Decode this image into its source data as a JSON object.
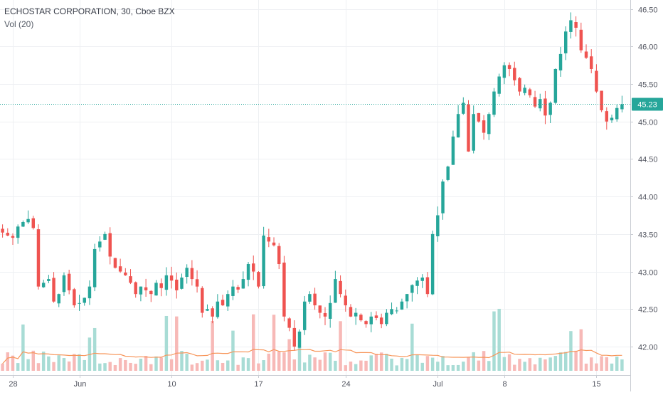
{
  "legend": {
    "title": "ECHOSTAR CORPORATION, 30, Cboe BZX",
    "volume_label": "Vol (20)"
  },
  "colors": {
    "up": "#26a69a",
    "down": "#ef5350",
    "vol_up": "#a8dcd5",
    "vol_down": "#f7b9b7",
    "vol_ma": "#f7965b",
    "grid": "#eef0f3",
    "axis_text": "#50535e",
    "last_price_bg": "#26a69a"
  },
  "last_price": {
    "label": "45.23",
    "value": 45.23
  },
  "chart_data": {
    "type": "candlestick",
    "title": "ECHOSTAR CORPORATION, 30, Cboe BZX",
    "ylim": [
      41.62,
      46.62
    ],
    "y_ticks": [
      "42.00",
      "42.50",
      "43.00",
      "43.50",
      "44.00",
      "44.50",
      "45.00",
      "45.50",
      "46.00",
      "46.50"
    ],
    "x_ticks": [
      {
        "label": "28",
        "index": 2
      },
      {
        "label": "Jun",
        "index": 15
      },
      {
        "label": "10",
        "index": 33
      },
      {
        "label": "17",
        "index": 50
      },
      {
        "label": "24",
        "index": 67
      },
      {
        "label": "Jul",
        "index": 85
      },
      {
        "label": "8",
        "index": 98
      },
      {
        "label": "15",
        "index": 116
      }
    ],
    "grid": true,
    "close": [
      43.52,
      43.48,
      43.45,
      43.6,
      43.66,
      43.7,
      43.58,
      42.8,
      42.85,
      42.9,
      42.6,
      42.7,
      42.95,
      42.75,
      42.55,
      42.58,
      42.65,
      42.8,
      43.3,
      43.4,
      43.5,
      43.2,
      43.05,
      43.0,
      42.95,
      42.85,
      42.7,
      42.8,
      42.75,
      42.7,
      42.85,
      42.78,
      42.95,
      42.88,
      42.75,
      42.92,
      43.05,
      42.9,
      42.8,
      42.45,
      42.5,
      42.4,
      42.6,
      42.55,
      42.7,
      42.8,
      42.76,
      42.9,
      43.1,
      43.0,
      42.8,
      43.48,
      43.4,
      43.35,
      43.1,
      42.4,
      42.25,
      42.0,
      42.2,
      42.6,
      42.7,
      42.55,
      42.45,
      42.4,
      42.58,
      42.9,
      42.7,
      42.55,
      42.4,
      42.45,
      42.35,
      42.3,
      42.4,
      42.38,
      42.3,
      42.45,
      42.5,
      42.48,
      42.6,
      42.7,
      42.82,
      42.88,
      42.92,
      42.7,
      43.5,
      43.75,
      44.2,
      44.4,
      44.8,
      45.1,
      45.25,
      44.6,
      45.1,
      45.0,
      44.85,
      45.1,
      45.4,
      45.6,
      45.75,
      45.7,
      45.55,
      45.4,
      45.45,
      45.35,
      45.2,
      45.3,
      45.08,
      45.25,
      45.7,
      45.9,
      46.2,
      46.35,
      46.25,
      45.95,
      45.85,
      45.7,
      45.4,
      45.15,
      45.0,
      45.05,
      45.18,
      45.23
    ],
    "volume_ma_level": 0.3
  }
}
